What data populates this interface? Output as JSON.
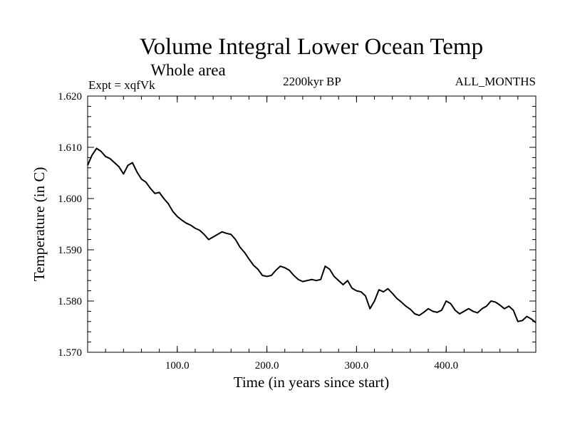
{
  "chart_data": {
    "type": "line",
    "title": "Volume Integral Lower Ocean Temp",
    "subtitle": "Whole area",
    "expt_label": "Expt = xqfVk",
    "period_label": "2200kyr BP",
    "months_label": "ALL_MONTHS",
    "xlabel": "Time (in years since start)",
    "ylabel": "Temperature (in C)",
    "xlim": [
      0,
      500
    ],
    "ylim": [
      1.57,
      1.62
    ],
    "x_ticks": [
      100,
      200,
      300,
      400
    ],
    "x_tick_labels": [
      "100.0",
      "200.0",
      "300.0",
      "400.0"
    ],
    "y_ticks": [
      1.57,
      1.58,
      1.59,
      1.6,
      1.61,
      1.62
    ],
    "y_tick_labels": [
      "1.570",
      "1.580",
      "1.590",
      "1.600",
      "1.610",
      "1.620"
    ],
    "grid": false,
    "legend": "none",
    "series": [
      {
        "name": "Volume integral lower ocean temperature",
        "color": "#000000",
        "x": [
          0,
          5,
          10,
          15,
          20,
          25,
          30,
          35,
          40,
          45,
          50,
          55,
          60,
          65,
          70,
          75,
          80,
          85,
          90,
          95,
          100,
          105,
          110,
          115,
          120,
          125,
          130,
          135,
          140,
          145,
          150,
          155,
          160,
          165,
          170,
          175,
          180,
          185,
          190,
          195,
          200,
          205,
          210,
          215,
          220,
          225,
          230,
          235,
          240,
          245,
          250,
          255,
          260,
          265,
          270,
          275,
          280,
          285,
          290,
          295,
          300,
          305,
          310,
          315,
          320,
          325,
          330,
          335,
          340,
          345,
          350,
          355,
          360,
          365,
          370,
          375,
          380,
          385,
          390,
          395,
          400,
          405,
          410,
          415,
          420,
          425,
          430,
          435,
          440,
          445,
          450,
          455,
          460,
          465,
          470,
          475,
          480,
          485,
          490,
          495,
          500
        ],
        "y": [
          1.6065,
          1.6085,
          1.6098,
          1.6092,
          1.6082,
          1.6078,
          1.607,
          1.6062,
          1.6048,
          1.6065,
          1.607,
          1.6052,
          1.6038,
          1.6032,
          1.602,
          1.601,
          1.6012,
          1.6,
          1.599,
          1.5975,
          1.5965,
          1.5958,
          1.5952,
          1.5948,
          1.5942,
          1.5938,
          1.593,
          1.592,
          1.5925,
          1.593,
          1.5935,
          1.5932,
          1.593,
          1.592,
          1.5905,
          1.5895,
          1.5882,
          1.587,
          1.5862,
          1.585,
          1.5848,
          1.585,
          1.586,
          1.5868,
          1.5865,
          1.586,
          1.585,
          1.5842,
          1.5838,
          1.584,
          1.5842,
          1.584,
          1.5842,
          1.5868,
          1.5862,
          1.5848,
          1.584,
          1.5832,
          1.584,
          1.5825,
          1.582,
          1.5818,
          1.581,
          1.5785,
          1.58,
          1.5822,
          1.5818,
          1.5824,
          1.5815,
          1.5805,
          1.5798,
          1.579,
          1.5784,
          1.5775,
          1.5772,
          1.5778,
          1.5785,
          1.578,
          1.5778,
          1.5782,
          1.58,
          1.5795,
          1.5782,
          1.5775,
          1.578,
          1.5785,
          1.578,
          1.5777,
          1.5785,
          1.579,
          1.58,
          1.5798,
          1.5792,
          1.5785,
          1.579,
          1.5782,
          1.576,
          1.5762,
          1.577,
          1.5765,
          1.5758
        ]
      }
    ]
  }
}
